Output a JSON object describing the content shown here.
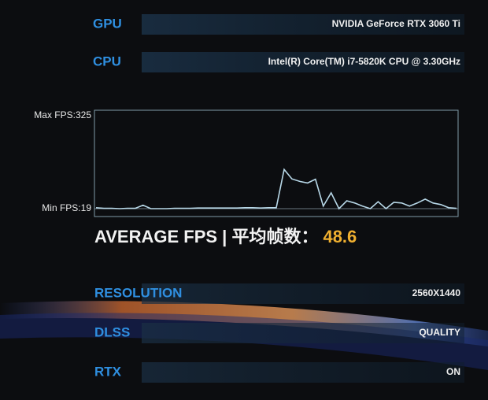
{
  "gpu": {
    "label": "GPU",
    "value": "NVIDIA GeForce RTX 3060 Ti"
  },
  "cpu": {
    "label": "CPU",
    "value": "Intel(R) Core(TM) i7-5820K CPU @ 3.30GHz"
  },
  "fps_chart": {
    "type": "line",
    "max_label": "Max FPS:",
    "max": 325,
    "min_label": "Min FPS:",
    "min": 19,
    "color": "#b8d8e8",
    "values": [
      22,
      20,
      20,
      19,
      20,
      20,
      30,
      19,
      19,
      19,
      20,
      20,
      20,
      21,
      21,
      21,
      21,
      21,
      21,
      22,
      22,
      21,
      22,
      22,
      143,
      113,
      105,
      100,
      112,
      27,
      69,
      19,
      44,
      37,
      27,
      19,
      41,
      19,
      39,
      37,
      27,
      37,
      49,
      37,
      32,
      22,
      20
    ]
  },
  "average": {
    "label": "AVERAGE FPS | 平均帧数：",
    "value": 48.6
  },
  "settings": [
    {
      "label": "RESOLUTION",
      "value": "2560X1440"
    },
    {
      "label": "DLSS",
      "value": "QUALITY"
    },
    {
      "label": "RTX",
      "value": "ON"
    }
  ]
}
